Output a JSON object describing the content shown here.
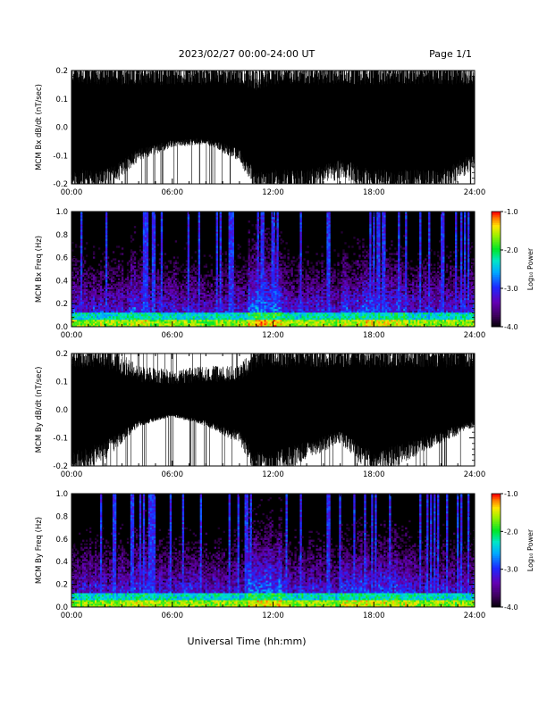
{
  "header": {
    "date_range": "2023/02/27  00:00-24:00 UT",
    "page": "Page 1/1"
  },
  "xaxis_label": "Universal Time (hh:mm)",
  "colorbar": {
    "label": "Log₁₀ Power",
    "ticks": [
      "-1.0",
      "-2.0",
      "-3.0",
      "-4.0"
    ],
    "range": [
      -4,
      -1
    ]
  },
  "chart_data": [
    {
      "type": "line",
      "title": "",
      "ylabel": "MCM Bx dB/dt (nT/sec)",
      "xlabel": "",
      "x_ticks": [
        "00:00",
        "06:00",
        "12:00",
        "18:00",
        "24:00"
      ],
      "xlim": [
        0,
        24
      ],
      "y_ticks": [
        "0.2",
        "0.1",
        "0.0",
        "-0.1",
        "-0.2"
      ],
      "ylim": [
        -0.2,
        0.2
      ],
      "series": [
        {
          "values_hours": [
            0,
            2,
            4,
            6,
            8,
            10,
            11,
            12,
            14,
            16,
            18,
            20,
            22,
            24
          ],
          "envelope_upper": [
            0.2,
            0.2,
            0.2,
            0.19,
            0.2,
            0.2,
            0.17,
            0.2,
            0.2,
            0.2,
            0.2,
            0.2,
            0.2,
            0.2
          ],
          "envelope_lower": [
            -0.2,
            -0.2,
            -0.1,
            -0.06,
            -0.05,
            -0.1,
            -0.2,
            -0.2,
            -0.2,
            -0.15,
            -0.2,
            -0.2,
            -0.2,
            -0.12
          ]
        }
      ]
    },
    {
      "type": "heatmap",
      "title": "",
      "ylabel": "MCM Bx Freq (Hz)",
      "xlabel": "",
      "x_ticks": [
        "00:00",
        "06:00",
        "12:00",
        "18:00",
        "24:00"
      ],
      "xlim": [
        0,
        24
      ],
      "y_ticks": [
        "1.0",
        "0.8",
        "0.6",
        "0.4",
        "0.2",
        "0.0"
      ],
      "ylim": [
        0,
        1.0
      ],
      "value_range": [
        -4,
        -1
      ]
    },
    {
      "type": "line",
      "title": "",
      "ylabel": "MCM By dB/dt (nT/sec)",
      "xlabel": "",
      "x_ticks": [
        "00:00",
        "06:00",
        "12:00",
        "18:00",
        "24:00"
      ],
      "xlim": [
        0,
        24
      ],
      "y_ticks": [
        "0.2",
        "0.1",
        "0.0",
        "-0.1",
        "-0.2"
      ],
      "ylim": [
        -0.2,
        0.2
      ],
      "series": [
        {
          "values_hours": [
            0,
            2,
            4,
            6,
            8,
            10,
            11,
            12,
            14,
            16,
            18,
            20,
            22,
            24
          ],
          "envelope_upper": [
            0.2,
            0.2,
            0.13,
            0.12,
            0.13,
            0.13,
            0.2,
            0.2,
            0.2,
            0.2,
            0.2,
            0.2,
            0.2,
            0.2
          ],
          "envelope_lower": [
            -0.2,
            -0.15,
            -0.05,
            -0.02,
            -0.05,
            -0.1,
            -0.2,
            -0.2,
            -0.15,
            -0.1,
            -0.2,
            -0.15,
            -0.1,
            -0.05
          ]
        }
      ]
    },
    {
      "type": "heatmap",
      "title": "",
      "ylabel": "MCM By Freq (Hz)",
      "xlabel": "Universal Time (hh:mm)",
      "x_ticks": [
        "00:00",
        "06:00",
        "12:00",
        "18:00",
        "24:00"
      ],
      "xlim": [
        0,
        24
      ],
      "y_ticks": [
        "1.0",
        "0.8",
        "0.6",
        "0.4",
        "0.2",
        "0.0"
      ],
      "ylim": [
        0,
        1.0
      ],
      "value_range": [
        -4,
        -1
      ]
    }
  ]
}
